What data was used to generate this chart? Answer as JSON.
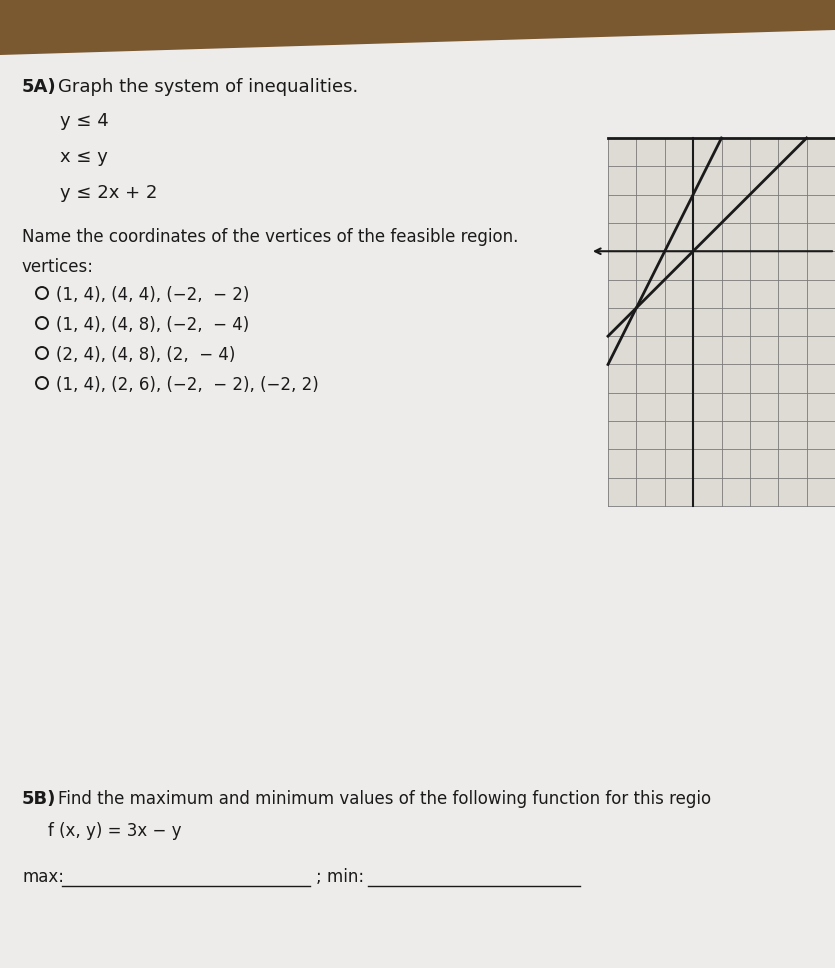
{
  "title_bold": "5A)",
  "title_rest": " Graph the system of inequalities.",
  "inequalities": [
    "y ≤ 4",
    "x ≤ y",
    "y ≤ 2x + 2"
  ],
  "name_text": "Name the coordinates of the vertices of the feasible region.",
  "vertices_label": "vertices:",
  "choices": [
    "(1, 4), (4, 4), (−2,  − 2)",
    "(1, 4), (4, 8), (−2,  − 4)",
    "(2, 4), (4, 8), (2,  − 4)",
    "(1, 4), (2, 6), (−2,  − 2), (−2, 2)"
  ],
  "section_5b_bold": "5B)",
  "section_5b_rest": " Find the maximum and minimum values of the following function for this regio",
  "function_label": "f (x, y) = 3x − y",
  "bg_wood_color": "#8B6340",
  "paper_color": "#eeecea",
  "grid_bg_color": "#dedad4",
  "grid_line_color": "#7a7a7a",
  "axis_color": "#1a1a1a",
  "line_color": "#1a1a1a",
  "text_color": "#1a1a1a",
  "text_color_light": "#3a3a3a",
  "fs_title": 13,
  "fs_ineq": 13,
  "fs_body": 12,
  "fs_choice": 12
}
